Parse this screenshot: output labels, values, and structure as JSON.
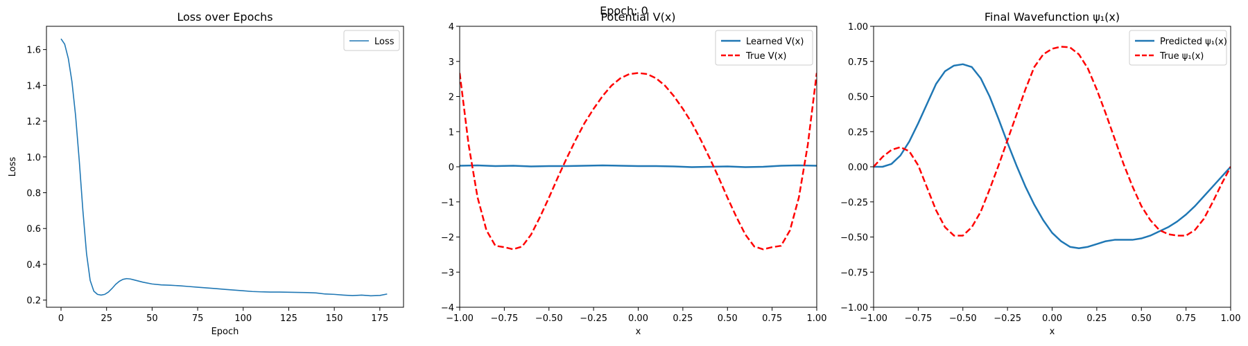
{
  "suptitle": "Epoch: 0",
  "chart_data": [
    {
      "type": "line",
      "title": "Loss over Epochs",
      "xlabel": "Epoch",
      "ylabel": "Loss",
      "xlim": [
        -8,
        188
      ],
      "ylim": [
        0.16,
        1.73
      ],
      "xticks": [
        0,
        25,
        50,
        75,
        100,
        125,
        150,
        175
      ],
      "xtick_labels": [
        "0",
        "25",
        "50",
        "75",
        "100",
        "125",
        "150",
        "175"
      ],
      "yticks": [
        0.2,
        0.4,
        0.6,
        0.8,
        1.0,
        1.2,
        1.4,
        1.6
      ],
      "ytick_labels": [
        "0.2",
        "0.4",
        "0.6",
        "0.8",
        "1.0",
        "1.2",
        "1.4",
        "1.6"
      ],
      "legend_position": "upper right",
      "series": [
        {
          "name": "Loss",
          "color": "#1f77b4",
          "style": "solid",
          "x": [
            0,
            2,
            4,
            6,
            8,
            10,
            12,
            14,
            16,
            18,
            20,
            22,
            24,
            26,
            28,
            30,
            32,
            34,
            36,
            38,
            40,
            45,
            50,
            55,
            60,
            65,
            70,
            75,
            80,
            85,
            90,
            95,
            100,
            105,
            110,
            115,
            120,
            125,
            130,
            135,
            140,
            145,
            150,
            155,
            160,
            165,
            170,
            175,
            179
          ],
          "y": [
            1.66,
            1.63,
            1.55,
            1.42,
            1.23,
            0.98,
            0.7,
            0.46,
            0.31,
            0.25,
            0.232,
            0.228,
            0.232,
            0.245,
            0.265,
            0.288,
            0.305,
            0.316,
            0.32,
            0.318,
            0.313,
            0.3,
            0.29,
            0.285,
            0.283,
            0.28,
            0.276,
            0.272,
            0.268,
            0.264,
            0.26,
            0.256,
            0.252,
            0.248,
            0.246,
            0.245,
            0.245,
            0.244,
            0.243,
            0.242,
            0.24,
            0.234,
            0.232,
            0.228,
            0.225,
            0.228,
            0.224,
            0.226,
            0.234
          ]
        }
      ]
    },
    {
      "type": "line",
      "title": "Potential V(x)",
      "xlabel": "x",
      "ylabel": "",
      "xlim": [
        -1.0,
        1.0
      ],
      "ylim": [
        -4,
        4
      ],
      "xticks": [
        -1.0,
        -0.75,
        -0.5,
        -0.25,
        0.0,
        0.25,
        0.5,
        0.75,
        1.0
      ],
      "xtick_labels": [
        "−1.00",
        "−0.75",
        "−0.50",
        "−0.25",
        "0.00",
        "0.25",
        "0.50",
        "0.75",
        "1.00"
      ],
      "yticks": [
        -4,
        -3,
        -2,
        -1,
        0,
        1,
        2,
        3,
        4
      ],
      "ytick_labels": [
        "−4",
        "−3",
        "−2",
        "−1",
        "0",
        "1",
        "2",
        "3",
        "4"
      ],
      "legend_position": "upper right",
      "series": [
        {
          "name": "Learned V(x)",
          "color": "#1f77b4",
          "style": "solid",
          "x": [
            -1.0,
            -0.9,
            -0.8,
            -0.7,
            -0.6,
            -0.5,
            -0.4,
            -0.3,
            -0.2,
            -0.1,
            0.0,
            0.1,
            0.2,
            0.3,
            0.4,
            0.5,
            0.6,
            0.7,
            0.8,
            0.9,
            1.0
          ],
          "y": [
            0.03,
            0.04,
            0.02,
            0.03,
            0.01,
            0.02,
            0.02,
            0.03,
            0.04,
            0.03,
            0.02,
            0.02,
            0.01,
            -0.01,
            0.0,
            0.01,
            -0.01,
            0.0,
            0.03,
            0.04,
            0.03
          ]
        },
        {
          "name": "True V(x)",
          "color": "#ff0000",
          "style": "dashed",
          "x": [
            -1.0,
            -0.95,
            -0.9,
            -0.85,
            -0.8,
            -0.75,
            -0.7,
            -0.65,
            -0.6,
            -0.55,
            -0.5,
            -0.45,
            -0.4,
            -0.35,
            -0.3,
            -0.25,
            -0.2,
            -0.15,
            -0.1,
            -0.05,
            0.0,
            0.05,
            0.1,
            0.15,
            0.2,
            0.25,
            0.3,
            0.35,
            0.4,
            0.45,
            0.5,
            0.55,
            0.6,
            0.65,
            0.7,
            0.75,
            0.8,
            0.85,
            0.9,
            0.95,
            1.0
          ],
          "y": [
            2.67,
            0.63,
            -0.87,
            -1.81,
            -2.25,
            -2.29,
            -2.35,
            -2.27,
            -1.93,
            -1.43,
            -0.88,
            -0.3,
            0.25,
            0.77,
            1.25,
            1.65,
            2.01,
            2.31,
            2.52,
            2.64,
            2.67,
            2.64,
            2.52,
            2.31,
            2.01,
            1.65,
            1.25,
            0.77,
            0.25,
            -0.3,
            -0.88,
            -1.43,
            -1.93,
            -2.27,
            -2.35,
            -2.29,
            -2.25,
            -1.81,
            -0.87,
            0.63,
            2.67
          ]
        }
      ]
    },
    {
      "type": "line",
      "title": "Final Wavefunction ψ₁(x)",
      "xlabel": "x",
      "ylabel": "",
      "xlim": [
        -1.0,
        1.0
      ],
      "ylim": [
        -1.0,
        1.0
      ],
      "xticks": [
        -1.0,
        -0.75,
        -0.5,
        -0.25,
        0.0,
        0.25,
        0.5,
        0.75,
        1.0
      ],
      "xtick_labels": [
        "−1.00",
        "−0.75",
        "−0.50",
        "−0.25",
        "0.00",
        "0.25",
        "0.50",
        "0.75",
        "1.00"
      ],
      "yticks": [
        -1.0,
        -0.75,
        -0.5,
        -0.25,
        0.0,
        0.25,
        0.5,
        0.75,
        1.0
      ],
      "ytick_labels": [
        "−1.00",
        "−0.75",
        "−0.50",
        "−0.25",
        "0.00",
        "0.25",
        "0.50",
        "0.75",
        "1.00"
      ],
      "legend_position": "upper right",
      "series": [
        {
          "name": "Predicted ψ₁(x)",
          "color": "#1f77b4",
          "style": "solid",
          "x": [
            -1.0,
            -0.95,
            -0.9,
            -0.85,
            -0.8,
            -0.75,
            -0.7,
            -0.65,
            -0.6,
            -0.55,
            -0.5,
            -0.45,
            -0.4,
            -0.35,
            -0.3,
            -0.25,
            -0.2,
            -0.15,
            -0.1,
            -0.05,
            0.0,
            0.05,
            0.1,
            0.15,
            0.2,
            0.25,
            0.3,
            0.35,
            0.4,
            0.45,
            0.5,
            0.55,
            0.6,
            0.65,
            0.7,
            0.75,
            0.8,
            0.85,
            0.9,
            0.95,
            1.0
          ],
          "y": [
            0.0,
            0.0,
            0.02,
            0.08,
            0.18,
            0.31,
            0.45,
            0.59,
            0.68,
            0.72,
            0.73,
            0.71,
            0.63,
            0.5,
            0.34,
            0.17,
            0.01,
            -0.14,
            -0.27,
            -0.38,
            -0.47,
            -0.53,
            -0.57,
            -0.58,
            -0.57,
            -0.55,
            -0.53,
            -0.52,
            -0.52,
            -0.52,
            -0.51,
            -0.49,
            -0.46,
            -0.43,
            -0.39,
            -0.34,
            -0.28,
            -0.21,
            -0.14,
            -0.07,
            0.0
          ]
        },
        {
          "name": "True ψ₁(x)",
          "color": "#ff0000",
          "style": "dashed",
          "x": [
            -1.0,
            -0.95,
            -0.9,
            -0.85,
            -0.8,
            -0.75,
            -0.7,
            -0.65,
            -0.6,
            -0.55,
            -0.5,
            -0.45,
            -0.4,
            -0.35,
            -0.3,
            -0.25,
            -0.2,
            -0.15,
            -0.1,
            -0.05,
            0.0,
            0.05,
            0.1,
            0.15,
            0.2,
            0.25,
            0.3,
            0.35,
            0.4,
            0.45,
            0.5,
            0.55,
            0.6,
            0.65,
            0.7,
            0.75,
            0.8,
            0.85,
            0.9,
            0.95,
            1.0
          ],
          "y": [
            0.0,
            0.07,
            0.12,
            0.14,
            0.11,
            0.01,
            -0.15,
            -0.31,
            -0.43,
            -0.49,
            -0.49,
            -0.43,
            -0.32,
            -0.16,
            0.01,
            0.19,
            0.37,
            0.55,
            0.71,
            0.8,
            0.84,
            0.855,
            0.85,
            0.8,
            0.7,
            0.55,
            0.38,
            0.2,
            0.02,
            -0.14,
            -0.28,
            -0.38,
            -0.45,
            -0.48,
            -0.49,
            -0.49,
            -0.45,
            -0.37,
            -0.25,
            -0.12,
            0.0
          ]
        }
      ]
    }
  ]
}
